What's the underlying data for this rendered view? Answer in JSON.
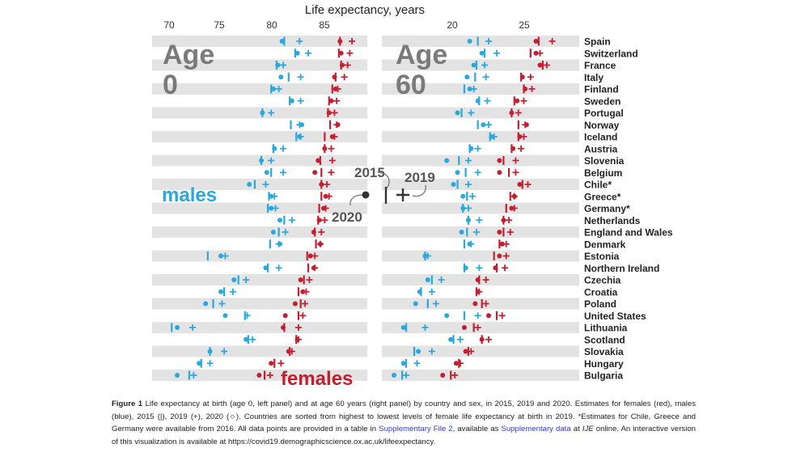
{
  "axis_title": "Life expectancy, years",
  "panel_labels": {
    "left": {
      "line1": "Age",
      "line2": "0"
    },
    "right": {
      "line1": "Age",
      "line2": "60"
    }
  },
  "series_labels": {
    "males": "males",
    "females": "females"
  },
  "legend": {
    "y2015": "2015",
    "y2019": "2019",
    "y2020": "2020"
  },
  "colors": {
    "male": "#29a8dd",
    "female": "#c41f31",
    "stripe": "#e3e3e3",
    "text": "#222222",
    "legend": "#555555"
  },
  "chart_data": {
    "type": "dot-range",
    "title": "Life expectancy, years",
    "countries": [
      "Spain",
      "Switzerland",
      "France",
      "Italy",
      "Finland",
      "Sweden",
      "Portugal",
      "Norway",
      "Iceland",
      "Austria",
      "Slovenia",
      "Belgium",
      "Chile*",
      "Greece*",
      "Germany*",
      "Netherlands",
      "England and Wales",
      "Denmark",
      "Estonia",
      "Northern Ireland",
      "Czechia",
      "Croatia",
      "Poland",
      "United States",
      "Lithuania",
      "Scotland",
      "Slovakia",
      "Hungary",
      "Bulgaria"
    ],
    "panels": [
      {
        "name": "Age 0",
        "xlim": [
          67.8,
          87.5
        ],
        "ticks": [
          70,
          75,
          80,
          85
        ],
        "tick_labels": [
          "70",
          "75",
          "80",
          "85"
        ],
        "males": {
          "y2015": [
            79.9,
            80.9,
            79.2,
            80.3,
            78.7,
            80.4,
            77.9,
            80.5,
            81.0,
            78.9,
            77.8,
            78.7,
            77.2,
            78.5,
            78.4,
            79.9,
            79.4,
            78.6,
            72.9,
            78.4,
            75.7,
            74.4,
            73.4,
            76.3,
            69.6,
            76.6,
            73.1,
            72.3,
            71.2
          ],
          "y2019": [
            81.3,
            82.1,
            79.8,
            81.4,
            79.4,
            81.4,
            78.7,
            81.3,
            81.4,
            79.8,
            78.7,
            79.8,
            78.2,
            79.0,
            79.1,
            80.6,
            80.0,
            79.4,
            74.5,
            79.4,
            76.4,
            75.2,
            74.2,
            76.5,
            71.5,
            77.0,
            74.4,
            73.1,
            71.6
          ],
          "y2020": [
            79.7,
            81.1,
            79.3,
            79.6,
            78.9,
            80.6,
            77.9,
            81.5,
            81.3,
            79.0,
            77.8,
            78.3,
            76.7,
            78.7,
            78.7,
            79.5,
            78.9,
            79.5,
            74.1,
            78.2,
            75.3,
            74.1,
            72.7,
            74.5,
            70.1,
            76.4,
            73.1,
            72.1,
            70.1
          ]
        },
        "females": {
          "y2015": [
            85.0,
            84.9,
            85.1,
            84.6,
            84.3,
            84.0,
            83.9,
            84.1,
            83.6,
            83.6,
            83.2,
            83.3,
            83.3,
            83.3,
            83.1,
            83.0,
            82.7,
            82.8,
            82.0,
            82.1,
            81.7,
            81.2,
            81.4,
            81.2,
            79.9,
            81.0,
            80.4,
            79.0,
            78.1
          ],
          "y2019": [
            86.1,
            85.9,
            85.7,
            85.4,
            84.8,
            84.7,
            84.5,
            84.7,
            84.5,
            84.2,
            84.3,
            84.2,
            83.8,
            84.0,
            83.7,
            83.6,
            83.3,
            83.2,
            82.7,
            82.7,
            82.2,
            81.9,
            81.8,
            81.6,
            81.2,
            81.2,
            80.6,
            79.6,
            78.6
          ],
          "y2020": [
            85.0,
            85.1,
            85.2,
            84.5,
            84.6,
            84.2,
            84.0,
            84.8,
            84.3,
            83.6,
            83.0,
            82.7,
            83.3,
            83.7,
            83.5,
            83.1,
            82.6,
            83.2,
            82.3,
            82.6,
            81.4,
            81.6,
            80.9,
            80.0,
            79.8,
            81.1,
            80.3,
            78.7,
            77.6
          ]
        }
      },
      {
        "name": "Age 60",
        "xlim": [
          15.9,
          30.5
        ],
        "ticks": [
          20,
          25
        ],
        "tick_labels": [
          "20",
          "25"
        ],
        "males": {
          "y2015": [
            23.0,
            23.5,
            22.9,
            22.8,
            22.0,
            23.1,
            21.8,
            23.0,
            23.9,
            22.4,
            21.6,
            22.1,
            21.5,
            22.2,
            21.9,
            22.3,
            22.2,
            22.0,
            19.1,
            22.0,
            19.6,
            18.8,
            19.3,
            22.0,
            17.7,
            21.2,
            18.3,
            17.7,
            17.4
          ],
          "y2019": [
            23.8,
            24.4,
            23.5,
            23.6,
            22.7,
            23.7,
            22.5,
            23.8,
            24.2,
            23.0,
            22.3,
            23.0,
            22.3,
            22.6,
            22.3,
            23.1,
            22.9,
            22.5,
            19.3,
            23.1,
            20.3,
            19.6,
            19.9,
            23.0,
            19.1,
            21.7,
            19.6,
            18.5,
            17.7
          ],
          "y2020": [
            22.4,
            23.3,
            22.7,
            22.2,
            22.4,
            23.0,
            21.5,
            23.4,
            24.0,
            22.5,
            20.7,
            21.5,
            21.2,
            21.9,
            21.9,
            22.3,
            21.8,
            22.4,
            19.1,
            22.1,
            19.3,
            18.7,
            18.4,
            20.7,
            17.5,
            21.0,
            18.6,
            17.5,
            16.8
          ]
        },
        "females": {
          "y2015": [
            27.5,
            26.9,
            27.8,
            26.2,
            26.4,
            25.7,
            25.5,
            26.0,
            26.0,
            25.5,
            24.9,
            25.3,
            26.3,
            25.4,
            25.1,
            24.9,
            24.9,
            24.6,
            24.2,
            24.4,
            23.1,
            22.9,
            23.3,
            24.4,
            22.7,
            23.3,
            22.3,
            21.6,
            21.0
          ],
          "y2019": [
            28.5,
            27.6,
            28.1,
            26.9,
            27.0,
            26.4,
            26.0,
            26.5,
            26.4,
            26.2,
            25.8,
            25.8,
            26.7,
            25.7,
            25.7,
            25.3,
            25.4,
            25.1,
            25.1,
            25.0,
            23.6,
            23.1,
            23.6,
            24.8,
            23.0,
            23.8,
            22.5,
            21.7,
            21.3
          ],
          "y2020": [
            27.3,
            27.3,
            27.6,
            26.3,
            26.5,
            25.9,
            25.5,
            26.6,
            26.1,
            25.6,
            24.6,
            24.6,
            26.1,
            25.7,
            25.5,
            24.9,
            24.6,
            24.8,
            24.6,
            24.3,
            23.0,
            23.0,
            22.8,
            23.8,
            22.0,
            23.3,
            22.1,
            21.4,
            20.4
          ]
        }
      }
    ],
    "legend_items": [
      "2015 (|)",
      "2019 (+)",
      "2020 (○)"
    ],
    "grid": "alternating horizontal stripes"
  },
  "caption": {
    "label": "Figure 1",
    "p1": "Life expectancy at birth (age 0, left panel) and at age 60 years (right panel) by country and sex, in 2015, 2019 and 2020. Estimates for females (red), males (blue), 2015 (|), 2019 (+), 2020 (○). Countries are sorted from highest to lowest levels of female life expectancy at birth in 2019. *Estimates for Chile, Greece and Germany were available from 2016. All data points are provided in a table in ",
    "link1": "Supplementary File 2",
    "p2": ", available as ",
    "link2": "Supplementary data",
    "p3": " at ",
    "journal": "IJE",
    "p4": " online. An interactive version of this visualization is available at https://covid19.demographicscience.ox.ac.uk/lifeexpectancy."
  }
}
